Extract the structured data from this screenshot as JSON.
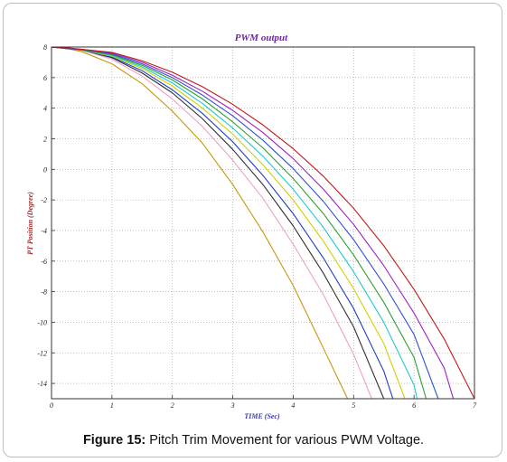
{
  "caption": {
    "label": "Figure 15:",
    "text": " Pitch Trim Movement for various PWM Voltage."
  },
  "chart_data": {
    "type": "line",
    "title": "PWM output",
    "xlabel": "TIME (Sec)",
    "ylabel": "PT Position (Degree)",
    "xlim": [
      0,
      7
    ],
    "ylim": [
      -15,
      8
    ],
    "xticks": [
      0,
      1,
      2,
      3,
      4,
      5,
      6,
      7
    ],
    "yticks": [
      8,
      6,
      4,
      2,
      0,
      -2,
      -4,
      -6,
      -8,
      -10,
      -12,
      -14
    ],
    "grid": true,
    "series": [
      {
        "color": "#c8960c",
        "x": [
          0,
          0.25,
          0.5,
          1,
          1.5,
          2,
          2.5,
          3,
          3.5,
          4,
          4.5,
          4.9
        ],
        "y": [
          8,
          7.9,
          7.7,
          6.9,
          5.6,
          3.8,
          1.7,
          -1.0,
          -4.1,
          -7.6,
          -11.7,
          -15
        ]
      },
      {
        "color": "#f0a0c8",
        "x": [
          0,
          0.25,
          0.5,
          1,
          1.5,
          2,
          2.5,
          3,
          3.5,
          4,
          4.5,
          5,
          5.3
        ],
        "y": [
          8,
          7.9,
          7.8,
          7.2,
          6.1,
          4.6,
          2.8,
          0.6,
          -1.9,
          -4.9,
          -8.2,
          -12.1,
          -15
        ]
      },
      {
        "color": "#303030",
        "x": [
          0,
          0.25,
          0.5,
          1,
          1.5,
          2,
          2.5,
          3,
          3.5,
          4,
          4.5,
          5,
          5.5
        ],
        "y": [
          8,
          7.9,
          7.8,
          7.3,
          6.3,
          5.0,
          3.3,
          1.3,
          -1.0,
          -3.7,
          -6.8,
          -10.3,
          -15
        ]
      },
      {
        "color": "#1e3cc8",
        "x": [
          0,
          0.25,
          0.5,
          1,
          1.5,
          2,
          2.5,
          3,
          3.5,
          4,
          4.5,
          5,
          5.5,
          5.65
        ],
        "y": [
          8,
          7.9,
          7.8,
          7.35,
          6.45,
          5.2,
          3.65,
          1.8,
          -0.4,
          -2.9,
          -5.8,
          -9.1,
          -13.2,
          -15
        ]
      },
      {
        "color": "#d0d000",
        "x": [
          0,
          0.25,
          0.5,
          1,
          1.5,
          2,
          2.5,
          3,
          3.5,
          4,
          4.5,
          5,
          5.5,
          5.85
        ],
        "y": [
          8,
          7.9,
          7.8,
          7.4,
          6.6,
          5.45,
          4.0,
          2.3,
          0.3,
          -2.0,
          -4.7,
          -7.8,
          -11.4,
          -15
        ]
      },
      {
        "color": "#20c8d0",
        "x": [
          0,
          0.25,
          0.5,
          1,
          1.5,
          2,
          2.5,
          3,
          3.5,
          4,
          4.5,
          5,
          5.5,
          6,
          6.05
        ],
        "y": [
          8,
          7.9,
          7.8,
          7.45,
          6.7,
          5.65,
          4.3,
          2.7,
          0.85,
          -1.3,
          -3.8,
          -6.7,
          -10.0,
          -14.1,
          -15
        ]
      },
      {
        "color": "#2ea02e",
        "x": [
          0,
          0.25,
          0.5,
          1,
          1.5,
          2,
          2.5,
          3,
          3.5,
          4,
          4.5,
          5,
          5.5,
          6,
          6.2
        ],
        "y": [
          8,
          7.9,
          7.8,
          7.5,
          6.8,
          5.85,
          4.6,
          3.1,
          1.4,
          -0.6,
          -2.9,
          -5.6,
          -8.7,
          -12.3,
          -15
        ]
      },
      {
        "color": "#3050d8",
        "x": [
          0,
          0.25,
          0.5,
          1,
          1.5,
          2,
          2.5,
          3,
          3.5,
          4,
          4.5,
          5,
          5.5,
          6,
          6.4
        ],
        "y": [
          8,
          7.9,
          7.85,
          7.55,
          6.9,
          6.0,
          4.85,
          3.5,
          1.9,
          0.05,
          -2.1,
          -4.6,
          -7.5,
          -10.8,
          -15
        ]
      },
      {
        "color": "#a020c0",
        "x": [
          0,
          0.25,
          0.5,
          1,
          1.5,
          2,
          2.5,
          3,
          3.5,
          4,
          4.5,
          5,
          5.5,
          6,
          6.5,
          6.65
        ],
        "y": [
          8,
          7.9,
          7.85,
          7.6,
          7.0,
          6.15,
          5.1,
          3.85,
          2.4,
          0.7,
          -1.3,
          -3.6,
          -6.3,
          -9.4,
          -13.0,
          -15
        ]
      },
      {
        "color": "#c01818",
        "x": [
          0,
          0.25,
          0.5,
          1,
          1.5,
          2,
          2.5,
          3,
          3.5,
          4,
          4.5,
          5,
          5.5,
          6,
          6.5,
          7
        ],
        "y": [
          8,
          7.95,
          7.85,
          7.65,
          7.1,
          6.35,
          5.4,
          4.25,
          2.9,
          1.35,
          -0.45,
          -2.55,
          -5.0,
          -7.85,
          -11.1,
          -15
        ]
      }
    ]
  }
}
